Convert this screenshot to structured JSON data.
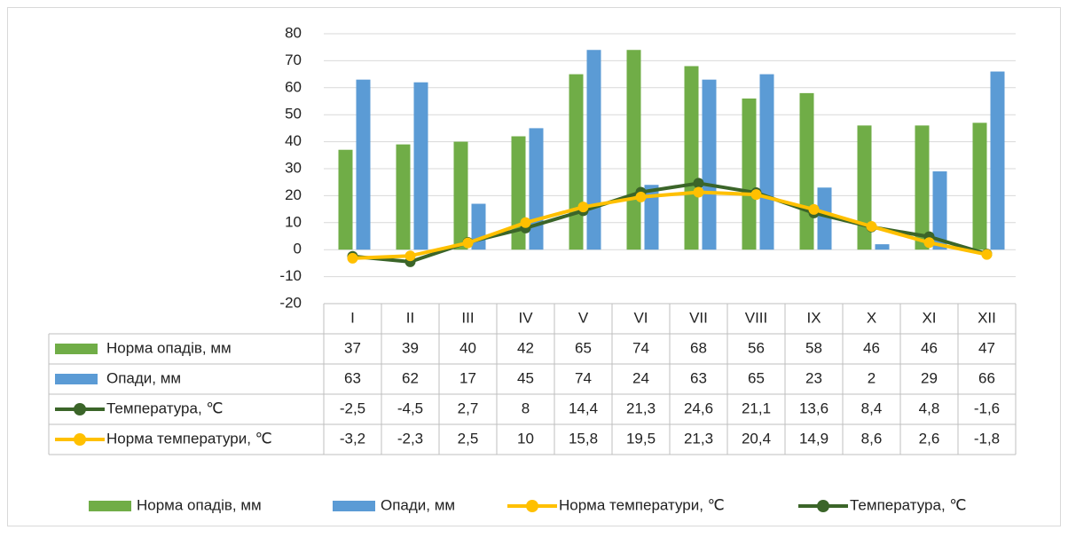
{
  "chart_data": {
    "type": "bar-line-table",
    "categories": [
      "I",
      "II",
      "III",
      "IV",
      "V",
      "VI",
      "VII",
      "VIII",
      "IX",
      "X",
      "XI",
      "XII"
    ],
    "ylim": [
      -20,
      80
    ],
    "yticks": [
      -20,
      -10,
      0,
      10,
      20,
      30,
      40,
      50,
      60,
      70,
      80
    ],
    "grid": true,
    "series": [
      {
        "name": "Норма опадів, мм",
        "type": "bar",
        "color": "#70ad47",
        "values": [
          37,
          39,
          40,
          42,
          65,
          74,
          68,
          56,
          58,
          46,
          46,
          47
        ]
      },
      {
        "name": "Опади, мм",
        "type": "bar",
        "color": "#5b9bd5",
        "values": [
          63,
          62,
          17,
          45,
          74,
          24,
          63,
          65,
          23,
          2,
          29,
          66
        ]
      },
      {
        "name": "Температура, ℃",
        "type": "line",
        "color": "#3b6529",
        "values": [
          -2.5,
          -4.5,
          2.7,
          8,
          14.4,
          21.3,
          24.6,
          21.1,
          13.6,
          8.4,
          4.8,
          -1.6
        ],
        "value_labels": [
          "-2,5",
          "-4,5",
          "2,7",
          "8",
          "14,4",
          "21,3",
          "24,6",
          "21,1",
          "13,6",
          "8,4",
          "4,8",
          "-1,6"
        ]
      },
      {
        "name": "Норма температури, ℃",
        "type": "line",
        "color": "#ffc000",
        "values": [
          -3.2,
          -2.3,
          2.5,
          10,
          15.8,
          19.5,
          21.3,
          20.4,
          14.9,
          8.6,
          2.6,
          -1.8
        ],
        "value_labels": [
          "-3,2",
          "-2,3",
          "2,5",
          "10",
          "15,8",
          "19,5",
          "21,3",
          "20,4",
          "14,9",
          "8,6",
          "2,6",
          "-1,8"
        ]
      }
    ]
  }
}
